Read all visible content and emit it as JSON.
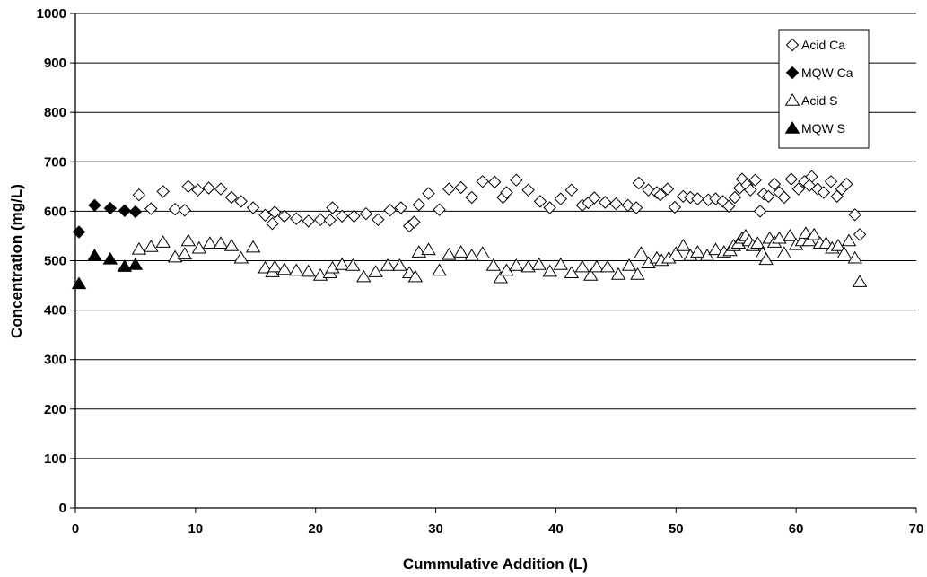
{
  "chart_data": {
    "type": "scatter",
    "title": "",
    "xlabel": "Cummulative Addition (L)",
    "ylabel": "Concentration (mg/L)",
    "xlim": [
      0,
      70
    ],
    "ylim": [
      0,
      1000
    ],
    "x_ticks": [
      0,
      10,
      20,
      30,
      40,
      50,
      60,
      70
    ],
    "y_ticks": [
      0,
      100,
      200,
      300,
      400,
      500,
      600,
      700,
      800,
      900,
      1000
    ],
    "grid": "horizontal",
    "legend_position": "top-right",
    "series": [
      {
        "name": "Acid Ca",
        "marker": "diamond-open",
        "color": "#000000",
        "points": [
          [
            5.3,
            633
          ],
          [
            6.3,
            605
          ],
          [
            7.3,
            640
          ],
          [
            8.3,
            604
          ],
          [
            9.1,
            602
          ],
          [
            9.4,
            650
          ],
          [
            10.2,
            643
          ],
          [
            11.1,
            647
          ],
          [
            12.1,
            645
          ],
          [
            13,
            628
          ],
          [
            13.8,
            620
          ],
          [
            14.8,
            607
          ],
          [
            15.8,
            592
          ],
          [
            16.4,
            575
          ],
          [
            16.6,
            598
          ],
          [
            17.4,
            590
          ],
          [
            18.4,
            585
          ],
          [
            19.4,
            580
          ],
          [
            20.4,
            583
          ],
          [
            21.2,
            582
          ],
          [
            21.4,
            607
          ],
          [
            22.2,
            590
          ],
          [
            23.2,
            590
          ],
          [
            24.2,
            595
          ],
          [
            25.2,
            583
          ],
          [
            26.2,
            602
          ],
          [
            27.1,
            607
          ],
          [
            27.8,
            570
          ],
          [
            28.2,
            578
          ],
          [
            28.6,
            613
          ],
          [
            29.4,
            636
          ],
          [
            30.3,
            603
          ],
          [
            31.1,
            645
          ],
          [
            32.1,
            648
          ],
          [
            33,
            628
          ],
          [
            33.9,
            660
          ],
          [
            34.9,
            659
          ],
          [
            35.6,
            628
          ],
          [
            35.9,
            638
          ],
          [
            36.7,
            663
          ],
          [
            37.7,
            643
          ],
          [
            38.7,
            620
          ],
          [
            39.5,
            607
          ],
          [
            40.4,
            625
          ],
          [
            41.3,
            643
          ],
          [
            42.2,
            612
          ],
          [
            42.7,
            617
          ],
          [
            43.2,
            627
          ],
          [
            44.1,
            618
          ],
          [
            45,
            615
          ],
          [
            46,
            612
          ],
          [
            46.7,
            607
          ],
          [
            46.9,
            657
          ],
          [
            47.7,
            643
          ],
          [
            48.4,
            638
          ],
          [
            48.7,
            633
          ],
          [
            49.3,
            645
          ],
          [
            49.9,
            608
          ],
          [
            50.6,
            630
          ],
          [
            51.2,
            628
          ],
          [
            51.8,
            625
          ],
          [
            52.7,
            623
          ],
          [
            53.3,
            625
          ],
          [
            53.9,
            620
          ],
          [
            54.4,
            610
          ],
          [
            54.9,
            628
          ],
          [
            55.3,
            647
          ],
          [
            55.5,
            665
          ],
          [
            55.9,
            653
          ],
          [
            56.2,
            643
          ],
          [
            56.6,
            663
          ],
          [
            57,
            600
          ],
          [
            57.3,
            635
          ],
          [
            57.7,
            630
          ],
          [
            58.2,
            655
          ],
          [
            58.6,
            638
          ],
          [
            59,
            628
          ],
          [
            59.6,
            665
          ],
          [
            60.2,
            645
          ],
          [
            60.7,
            660
          ],
          [
            61.3,
            670
          ],
          [
            61.1,
            652
          ],
          [
            61.8,
            645
          ],
          [
            62.3,
            638
          ],
          [
            62.9,
            660
          ],
          [
            63.4,
            630
          ],
          [
            63.8,
            645
          ],
          [
            64.2,
            655
          ],
          [
            64.9,
            593
          ],
          [
            65.3,
            553
          ]
        ]
      },
      {
        "name": "MQW Ca",
        "marker": "diamond-filled",
        "color": "#000000",
        "points": [
          [
            0.3,
            558
          ],
          [
            1.6,
            612
          ],
          [
            2.9,
            606
          ],
          [
            4.1,
            601
          ],
          [
            5,
            599
          ]
        ]
      },
      {
        "name": "Acid S",
        "marker": "triangle-open",
        "color": "#000000",
        "points": [
          [
            5.3,
            523
          ],
          [
            6.3,
            528
          ],
          [
            7.3,
            537
          ],
          [
            8.3,
            507
          ],
          [
            9.1,
            513
          ],
          [
            9.4,
            540
          ],
          [
            10.3,
            525
          ],
          [
            11.2,
            535
          ],
          [
            12.1,
            535
          ],
          [
            13,
            530
          ],
          [
            13.8,
            505
          ],
          [
            14.8,
            527
          ],
          [
            15.8,
            485
          ],
          [
            16.4,
            477
          ],
          [
            16.6,
            487
          ],
          [
            17.4,
            482
          ],
          [
            18.4,
            480
          ],
          [
            19.4,
            478
          ],
          [
            20.4,
            470
          ],
          [
            21.2,
            475
          ],
          [
            21.4,
            485
          ],
          [
            22.2,
            492
          ],
          [
            23.1,
            490
          ],
          [
            24,
            467
          ],
          [
            25,
            477
          ],
          [
            26,
            490
          ],
          [
            27,
            490
          ],
          [
            27.8,
            475
          ],
          [
            28.3,
            467
          ],
          [
            28.6,
            517
          ],
          [
            29.4,
            522
          ],
          [
            30.3,
            480
          ],
          [
            31.1,
            512
          ],
          [
            32.1,
            517
          ],
          [
            33,
            510
          ],
          [
            33.9,
            515
          ],
          [
            34.8,
            490
          ],
          [
            35.4,
            465
          ],
          [
            35.9,
            480
          ],
          [
            36.7,
            490
          ],
          [
            37.7,
            487
          ],
          [
            38.6,
            492
          ],
          [
            39.5,
            478
          ],
          [
            40.4,
            492
          ],
          [
            41.3,
            475
          ],
          [
            42.2,
            487
          ],
          [
            42.9,
            470
          ],
          [
            43.4,
            487
          ],
          [
            44.3,
            487
          ],
          [
            45.2,
            472
          ],
          [
            46.1,
            490
          ],
          [
            46.8,
            472
          ],
          [
            47.1,
            515
          ],
          [
            47.7,
            495
          ],
          [
            48.4,
            505
          ],
          [
            48.8,
            500
          ],
          [
            49.4,
            505
          ],
          [
            50,
            515
          ],
          [
            50.6,
            530
          ],
          [
            51.2,
            510
          ],
          [
            51.8,
            517
          ],
          [
            52.6,
            510
          ],
          [
            53.3,
            522
          ],
          [
            54,
            517
          ],
          [
            54.5,
            520
          ],
          [
            54.8,
            530
          ],
          [
            55.2,
            535
          ],
          [
            55.5,
            545
          ],
          [
            55.8,
            550
          ],
          [
            56.1,
            540
          ],
          [
            56.4,
            530
          ],
          [
            56.8,
            535
          ],
          [
            57.2,
            515
          ],
          [
            57.5,
            502
          ],
          [
            57.8,
            545
          ],
          [
            58.2,
            537
          ],
          [
            58.6,
            545
          ],
          [
            59,
            515
          ],
          [
            59.5,
            550
          ],
          [
            60,
            532
          ],
          [
            60.5,
            540
          ],
          [
            60.8,
            555
          ],
          [
            61.1,
            540
          ],
          [
            61.5,
            552
          ],
          [
            62,
            535
          ],
          [
            62.5,
            535
          ],
          [
            63,
            525
          ],
          [
            63.5,
            530
          ],
          [
            64,
            515
          ],
          [
            64.4,
            540
          ],
          [
            64.9,
            505
          ],
          [
            65.3,
            457
          ]
        ]
      },
      {
        "name": "MQW S",
        "marker": "triangle-filled",
        "color": "#000000",
        "points": [
          [
            0.3,
            453
          ],
          [
            1.6,
            510
          ],
          [
            2.9,
            503
          ],
          [
            4.1,
            488
          ],
          [
            5,
            492
          ]
        ]
      }
    ]
  }
}
